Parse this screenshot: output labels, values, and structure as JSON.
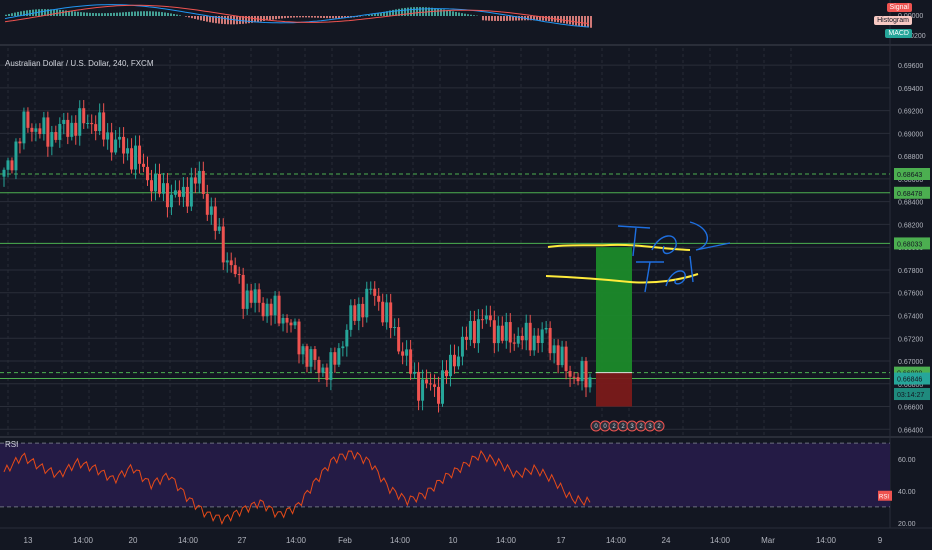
{
  "colors": {
    "background": "#131722",
    "grid": "#2a2e39",
    "up": "#26a69a",
    "down": "#ef5350",
    "level_line": "#4caf50",
    "rsi_line": "#e64a19",
    "rsi_band": "#2a1f4d",
    "macd": "#2196f3",
    "signal": "#ef5350",
    "target_zone": "#1b8a2a",
    "stop_zone": "#7a1a1a",
    "drawing_yellow": "#ffeb3b",
    "drawing_blue": "#1e6fe0"
  },
  "macd_pane": {
    "legend": [
      "Signal",
      "Histogram",
      "MACD"
    ],
    "ticks": [
      "0.00000",
      "-0.00200"
    ]
  },
  "main_pane": {
    "title": "Australian Dollar / U.S. Dollar, 240, FXCM",
    "price_ticks": [
      "0.69600",
      "0.69400",
      "0.69200",
      "0.69000",
      "0.68800",
      "0.68600",
      "0.68400",
      "0.68200",
      "0.68000",
      "0.67800",
      "0.67600",
      "0.67400",
      "0.67200",
      "0.67000",
      "0.66800",
      "0.66600",
      "0.66400"
    ],
    "level_tags": [
      {
        "label": "0.68643",
        "value": 0.68643
      },
      {
        "label": "0.68478",
        "value": 0.68478
      },
      {
        "label": "0.68033",
        "value": 0.68033
      },
      {
        "label": "0.66898",
        "value": 0.66898
      },
      {
        "label": "0.66846",
        "value": 0.66846
      },
      {
        "label": "03:14:27",
        "value": 0.6671
      }
    ],
    "trade_zone": {
      "entry": 0.66898,
      "target": 0.68,
      "stop": 0.666
    },
    "event_markers": [
      "0",
      "0",
      "2",
      "2",
      "3",
      "2",
      "3",
      "2"
    ],
    "annotations": [
      "TP 2",
      "TP 1"
    ]
  },
  "rsi_pane": {
    "label": "RSI",
    "ticks": [
      "60.00",
      "40.00",
      "20.00"
    ],
    "current_tag": "RSI"
  },
  "x_axis": {
    "labels": [
      "13",
      "14:00",
      "20",
      "14:00",
      "27",
      "14:00",
      "Feb",
      "14:00",
      "10",
      "14:00",
      "17",
      "14:00",
      "24",
      "14:00",
      "Mar",
      "14:00",
      "9"
    ]
  },
  "chart_data": {
    "type": "candlestick",
    "title": "Australian Dollar / U.S. Dollar, 240, FXCM",
    "y_range": [
      0.6635,
      0.6975
    ],
    "horizontal_levels": [
      0.68643,
      0.68478,
      0.68033,
      0.66898,
      0.66846
    ],
    "close_path": [
      {
        "x": "13",
        "y": 0.6862
      },
      {
        "x": "14",
        "y": 0.691
      },
      {
        "x": "15",
        "y": 0.6898
      },
      {
        "x": "16",
        "y": 0.6906
      },
      {
        "x": "17",
        "y": 0.6912
      },
      {
        "x": "20",
        "y": 0.6893
      },
      {
        "x": "21",
        "y": 0.688
      },
      {
        "x": "22",
        "y": 0.6852
      },
      {
        "x": "23",
        "y": 0.6843
      },
      {
        "x": "24",
        "y": 0.686
      },
      {
        "x": "27",
        "y": 0.6802
      },
      {
        "x": "28",
        "y": 0.676
      },
      {
        "x": "29",
        "y": 0.6748
      },
      {
        "x": "30",
        "y": 0.6738
      },
      {
        "x": "31",
        "y": 0.6702
      },
      {
        "x": "Feb 3",
        "y": 0.669
      },
      {
        "x": "Feb 4",
        "y": 0.6738
      },
      {
        "x": "Feb 5",
        "y": 0.6762
      },
      {
        "x": "Feb 6",
        "y": 0.6725
      },
      {
        "x": "Feb 7",
        "y": 0.668
      },
      {
        "x": "Feb 10",
        "y": 0.6675
      },
      {
        "x": "Feb 11",
        "y": 0.6712
      },
      {
        "x": "Feb 12",
        "y": 0.6738
      },
      {
        "x": "Feb 13",
        "y": 0.6722
      },
      {
        "x": "Feb 14",
        "y": 0.672
      },
      {
        "x": "Feb 17",
        "y": 0.6722
      },
      {
        "x": "Feb 18",
        "y": 0.669
      },
      {
        "x": "Feb 19",
        "y": 0.6683
      }
    ],
    "rsi_range": [
      18,
      72
    ],
    "rsi_levels": [
      70,
      30
    ],
    "rsi_path": [
      52,
      62,
      55,
      50,
      58,
      54,
      47,
      55,
      44,
      50,
      36,
      26,
      22,
      28,
      33,
      25,
      30,
      46,
      60,
      64,
      58,
      42,
      34,
      38,
      48,
      55,
      63,
      58,
      50,
      54,
      47,
      35,
      33
    ]
  }
}
